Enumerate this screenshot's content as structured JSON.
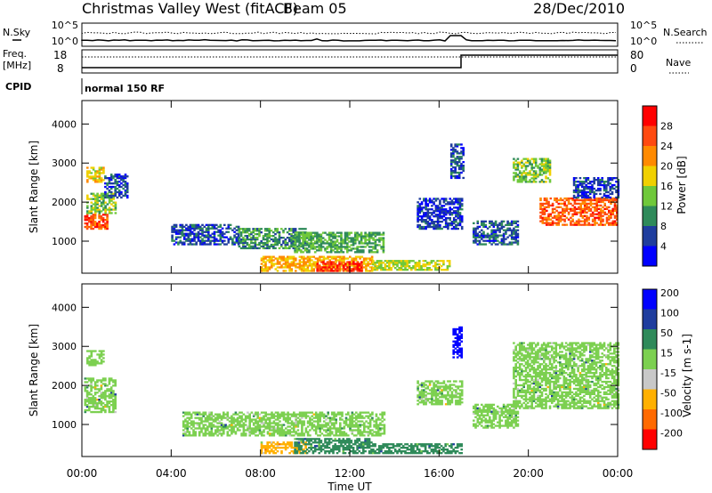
{
  "header": {
    "title": "Christmas Valley West (fitACF)",
    "beam": "Beam 05",
    "date": "28/Dec/2010"
  },
  "strip": {
    "nsky_label": "N.Sky",
    "nsearch_label": "N.Search",
    "noise_ticks": [
      "10^5",
      "10^0"
    ],
    "freq_label": "Freq.",
    "freq_unit": "[MHz]",
    "freq_ticks": [
      "18",
      "8"
    ],
    "nave_label": "Nave",
    "nave_ticks": [
      "80",
      "0"
    ],
    "cpid_label": "CPID",
    "cpid_value": "normal 150 RF"
  },
  "colors": {
    "power": [
      "#0000ff",
      "#1f3d9e",
      "#2f8a5a",
      "#6fc83a",
      "#f0d000",
      "#ff8a00",
      "#ff4a10",
      "#ff0000"
    ],
    "velocity": [
      "#ff0000",
      "#ff6a00",
      "#ffb000",
      "#c8c8c8",
      "#7cd050",
      "#2f8a5a",
      "#1f3d9e",
      "#0000ff"
    ]
  },
  "chart_data": [
    {
      "type": "heatmap",
      "panel": "power",
      "ylabel": "Slant Range [km]",
      "xlabel": "",
      "xticks": [
        "00:00",
        "04:00",
        "08:00",
        "12:00",
        "16:00",
        "20:00",
        "00:00"
      ],
      "x_range_hours": [
        0,
        24
      ],
      "yticks": [
        1000,
        2000,
        3000,
        4000
      ],
      "ylim": [
        180,
        4600
      ],
      "colorbar": {
        "label": "Power [dB]",
        "ticks": [
          4,
          8,
          12,
          16,
          20,
          24,
          28
        ],
        "range": [
          0,
          32
        ]
      },
      "regions": [
        {
          "t": [
            0.1,
            1.1
          ],
          "r": [
            1300,
            1700
          ],
          "value": 26
        },
        {
          "t": [
            0.2,
            1.5
          ],
          "r": [
            1700,
            2200
          ],
          "value": 14
        },
        {
          "t": [
            0.2,
            1.0
          ],
          "r": [
            2500,
            2900
          ],
          "value": 18
        },
        {
          "t": [
            1.0,
            2.0
          ],
          "r": [
            2100,
            2700
          ],
          "value": 6
        },
        {
          "t": [
            4.0,
            7.0
          ],
          "r": [
            900,
            1400
          ],
          "value": 6
        },
        {
          "t": [
            7.0,
            10.0
          ],
          "r": [
            800,
            1300
          ],
          "value": 10
        },
        {
          "t": [
            9.5,
            13.5
          ],
          "r": [
            700,
            1200
          ],
          "value": 12
        },
        {
          "t": [
            8.0,
            13.0
          ],
          "r": [
            220,
            600
          ],
          "value": 20
        },
        {
          "t": [
            10.5,
            12.5
          ],
          "r": [
            220,
            450
          ],
          "value": 28
        },
        {
          "t": [
            13.0,
            16.5
          ],
          "r": [
            250,
            500
          ],
          "value": 16
        },
        {
          "t": [
            15.0,
            17.0
          ],
          "r": [
            1300,
            2100
          ],
          "value": 5
        },
        {
          "t": [
            16.5,
            17.1
          ],
          "r": [
            2600,
            3500
          ],
          "value": 6
        },
        {
          "t": [
            17.5,
            19.5
          ],
          "r": [
            900,
            1500
          ],
          "value": 7
        },
        {
          "t": [
            19.3,
            21.0
          ],
          "r": [
            2500,
            3100
          ],
          "value": 14
        },
        {
          "t": [
            20.5,
            24.0
          ],
          "r": [
            1400,
            2100
          ],
          "value": 25
        },
        {
          "t": [
            22.0,
            24.0
          ],
          "r": [
            2100,
            2600
          ],
          "value": 5
        }
      ]
    },
    {
      "type": "heatmap",
      "panel": "velocity",
      "ylabel": "Slant Range [km]",
      "xlabel": "Time UT",
      "xticks": [
        "00:00",
        "04:00",
        "08:00",
        "12:00",
        "16:00",
        "20:00",
        "00:00"
      ],
      "x_range_hours": [
        0,
        24
      ],
      "yticks": [
        1000,
        2000,
        3000,
        4000
      ],
      "ylim": [
        180,
        4600
      ],
      "colorbar": {
        "label": "Velocity [m s-1]",
        "ticks": [
          -200,
          -100,
          -50,
          -15,
          15,
          50,
          100,
          200
        ]
      },
      "regions": [
        {
          "t": [
            0.1,
            1.5
          ],
          "r": [
            1300,
            2200
          ],
          "value": 0
        },
        {
          "t": [
            0.2,
            1.0
          ],
          "r": [
            2500,
            2900
          ],
          "value": 0
        },
        {
          "t": [
            4.5,
            13.5
          ],
          "r": [
            700,
            1300
          ],
          "value": 0
        },
        {
          "t": [
            8.0,
            10.0
          ],
          "r": [
            250,
            550
          ],
          "value": -60
        },
        {
          "t": [
            9.5,
            13.0
          ],
          "r": [
            250,
            650
          ],
          "value": 40
        },
        {
          "t": [
            13.0,
            17.0
          ],
          "r": [
            250,
            500
          ],
          "value": 30
        },
        {
          "t": [
            15.0,
            17.0
          ],
          "r": [
            1500,
            2100
          ],
          "value": 0
        },
        {
          "t": [
            16.6,
            17.0
          ],
          "r": [
            2700,
            3500
          ],
          "value": 200
        },
        {
          "t": [
            17.5,
            19.5
          ],
          "r": [
            900,
            1500
          ],
          "value": 0
        },
        {
          "t": [
            19.3,
            24.0
          ],
          "r": [
            1400,
            3100
          ],
          "value": 0
        }
      ]
    }
  ]
}
